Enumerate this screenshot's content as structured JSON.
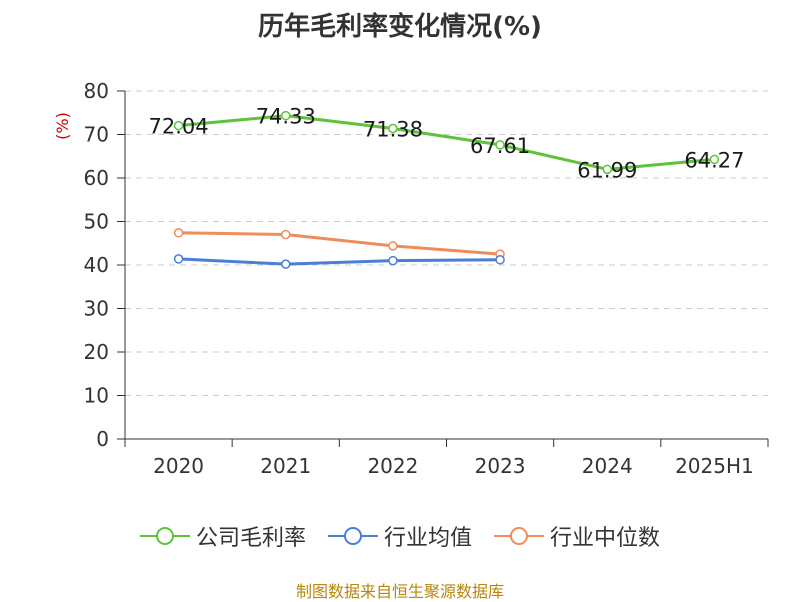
{
  "title": "历年毛利率变化情况(%)",
  "source": "制图数据来自恒生聚源数据库",
  "chart_data": {
    "type": "line",
    "title": "历年毛利率变化情况(%)",
    "ylabel": "(%)",
    "xlabel": "",
    "categories": [
      "2020",
      "2021",
      "2022",
      "2023",
      "2024",
      "2025H1"
    ],
    "ylim": [
      0,
      80
    ],
    "yticks": [
      0,
      10,
      20,
      30,
      40,
      50,
      60,
      70,
      80
    ],
    "grid": true,
    "legend_position": "bottom",
    "series": [
      {
        "name": "公司毛利率",
        "color": "#5ec23a",
        "values": [
          72.04,
          74.33,
          71.38,
          67.61,
          61.99,
          64.27
        ],
        "labels": [
          "72.04",
          "74.33",
          "71.38",
          "67.61",
          "61.99",
          "64.27"
        ]
      },
      {
        "name": "行业均值",
        "color": "#4a7fd6",
        "values": [
          41.4,
          40.2,
          41.0,
          41.2,
          null,
          null
        ]
      },
      {
        "name": "行业中位数",
        "color": "#f08c5a",
        "values": [
          47.4,
          47.0,
          44.4,
          42.5,
          null,
          null
        ]
      }
    ]
  }
}
